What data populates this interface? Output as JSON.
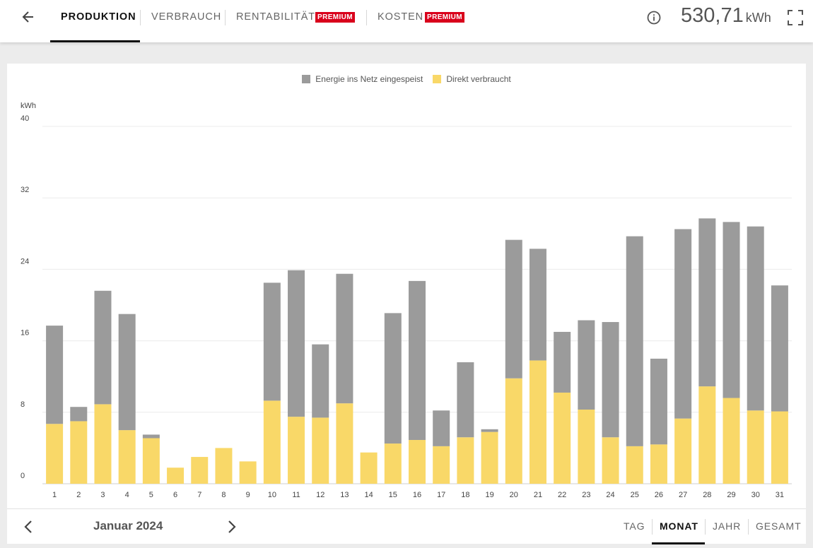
{
  "header": {
    "tabs": [
      {
        "label": "PRODUKTION",
        "active": true,
        "premium": false
      },
      {
        "label": "VERBRAUCH",
        "active": false,
        "premium": false
      },
      {
        "label": "RENTABILITÄT",
        "active": false,
        "premium": true
      },
      {
        "label": "KOSTEN",
        "active": false,
        "premium": true
      }
    ],
    "premium_badge": "PREMIUM",
    "total_value": "530,71",
    "total_unit": "kWh",
    "icons": {
      "back": "arrow-left-icon",
      "info": "info-icon",
      "fullscreen": "fullscreen-icon"
    }
  },
  "chart_data": {
    "type": "bar",
    "stacked": true,
    "unit_label": "kWh",
    "ylim": [
      0,
      40
    ],
    "yticks": [
      0,
      8,
      16,
      24,
      32,
      40
    ],
    "grid": true,
    "legend_position": "top-center",
    "categories": [
      "1",
      "2",
      "3",
      "4",
      "5",
      "6",
      "7",
      "8",
      "9",
      "10",
      "11",
      "12",
      "13",
      "14",
      "15",
      "16",
      "17",
      "18",
      "19",
      "20",
      "21",
      "22",
      "23",
      "24",
      "25",
      "26",
      "27",
      "28",
      "29",
      "30",
      "31"
    ],
    "series": [
      {
        "name": "Direkt verbraucht",
        "color": "#f9d868",
        "values": [
          6.7,
          7.0,
          8.9,
          6.0,
          5.1,
          1.8,
          3.0,
          4.0,
          2.5,
          9.3,
          7.5,
          7.4,
          9.0,
          3.5,
          4.5,
          4.9,
          4.2,
          5.2,
          5.8,
          11.8,
          13.8,
          10.2,
          8.3,
          5.2,
          4.2,
          4.4,
          7.3,
          10.9,
          9.6,
          8.2,
          8.1
        ]
      },
      {
        "name": "Energie ins Netz eingespeist",
        "color": "#9b9b9b",
        "values": [
          11.0,
          1.6,
          12.7,
          13.0,
          0.4,
          0,
          0,
          0,
          0,
          13.2,
          16.4,
          8.2,
          14.5,
          0,
          14.6,
          17.8,
          4.0,
          8.4,
          0.3,
          15.5,
          12.5,
          6.8,
          10.0,
          12.9,
          23.5,
          9.6,
          21.2,
          18.8,
          19.7,
          20.6,
          14.1
        ]
      }
    ]
  },
  "footer": {
    "period_label": "Januar 2024",
    "range_tabs": [
      {
        "label": "TAG",
        "active": false
      },
      {
        "label": "MONAT",
        "active": true
      },
      {
        "label": "JAHR",
        "active": false
      },
      {
        "label": "GESAMT",
        "active": false
      }
    ],
    "icons": {
      "prev": "chevron-left-icon",
      "next": "chevron-right-icon"
    }
  }
}
